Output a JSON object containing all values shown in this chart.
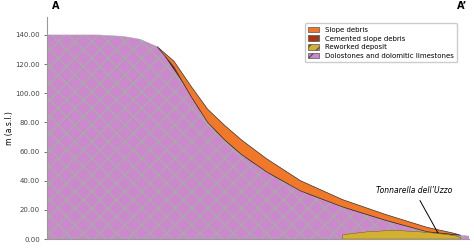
{
  "ylabel": "m (a.s.l.)",
  "yticks": [
    0,
    20,
    40,
    60,
    80,
    100,
    120,
    140
  ],
  "ytick_labels": [
    "0.00",
    "20.00",
    "40.00",
    "60.00",
    "80.00",
    "100.00",
    "120.00",
    "140.00"
  ],
  "bg_color": "#ffffff",
  "label_A": "A",
  "label_Aprime": "A’",
  "annotation_text": "Tonnarella dell’Uzzo",
  "colors": {
    "dolostones": "#cc88cc",
    "slope_debris": "#f07828",
    "cemented": "#b83008",
    "reworked": "#d4b030"
  },
  "legend_entries": [
    {
      "label": "Slope debris",
      "color": "#f07828",
      "hatch": ""
    },
    {
      "label": "Cemented slope debris",
      "color": "#b83008",
      "hatch": "///"
    },
    {
      "label": "Reworked deposit",
      "color": "#d4b030",
      "hatch": "///"
    },
    {
      "label": "Dolostones and dolomitic limestones",
      "color": "#cc88cc",
      "hatch": "xx"
    }
  ]
}
